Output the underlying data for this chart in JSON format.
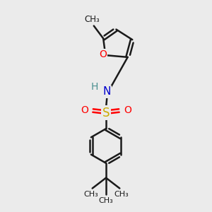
{
  "background_color": "#ebebeb",
  "line_color": "#1a1a1a",
  "bond_width": 1.8,
  "font_size": 10,
  "atom_colors": {
    "O": "#ff0000",
    "N": "#0000cc",
    "S": "#ccaa00",
    "H": "#4a9090",
    "C": "#1a1a1a"
  },
  "figsize": [
    3.0,
    3.0
  ],
  "dpi": 100,
  "xlim": [
    0,
    10
  ],
  "ylim": [
    0,
    10
  ]
}
